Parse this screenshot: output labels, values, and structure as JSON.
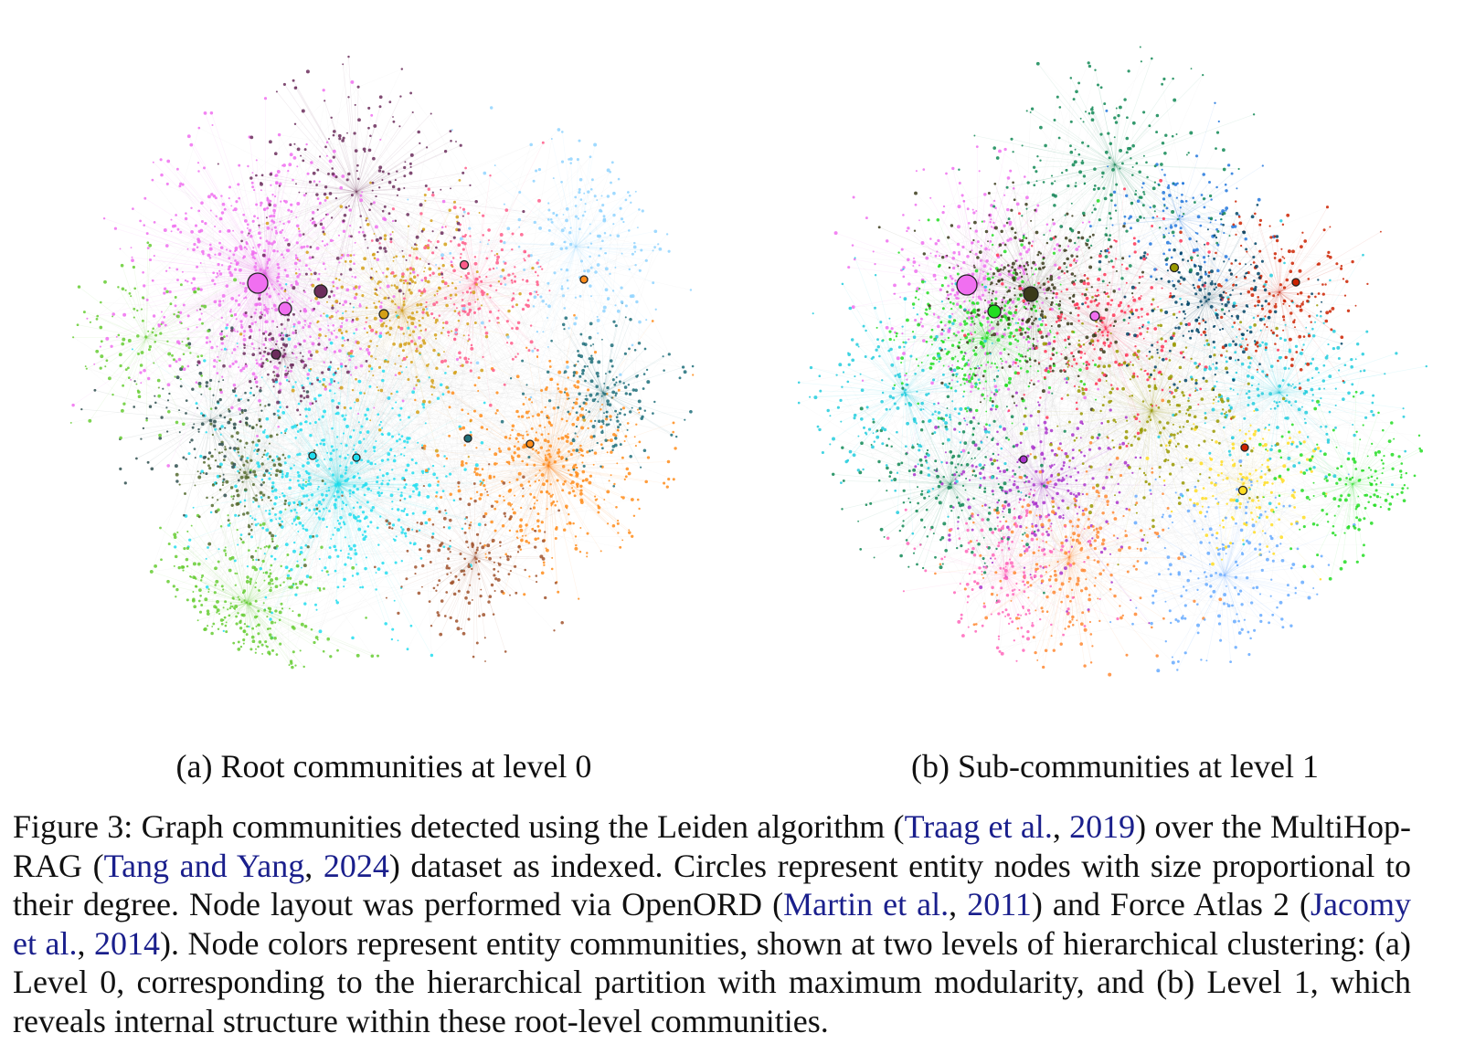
{
  "figure": {
    "subcaption_a": "(a) Root communities at level 0",
    "subcaption_b": "(b) Sub-communities at level 1",
    "caption": {
      "t1": "Figure 3:  Graph communities detected using the Leiden algorithm (",
      "c1_text": "Traag et al.",
      "c1_sep": ", ",
      "c1_year": "2019",
      "t2": ") over the MultiHop-RAG (",
      "c2_text": "Tang and Yang",
      "c2_sep": ", ",
      "c2_year": "2024",
      "t3": ") dataset as indexed. Circles represent entity nodes with size proportional to their degree.  Node layout was performed via OpenORD (",
      "c3_text": "Martin et al.",
      "c3_sep": ", ",
      "c3_year": "2011",
      "t4": ") and Force Atlas 2 (",
      "c4_text": "Jacomy et al.",
      "c4_sep": ", ",
      "c4_year": "2014",
      "t5": "). Node colors represent entity communities, shown at two levels of hierarchical clustering: (a) Level 0, corresponding to the hierarchical partition with maximum modularity, and (b) Level 1, which reveals internal structure within these root-level communities."
    }
  },
  "colors": {
    "citation": "#1a1f8c",
    "level0_palette": [
      "#f06ff0",
      "#22ddee",
      "#ff8c1a",
      "#66cc33",
      "#d4a017",
      "#6b2d5c",
      "#1f6f7a",
      "#556b2f",
      "#ff5c8a",
      "#8fd3ff",
      "#2f4f4f",
      "#a0522d"
    ],
    "level1_palette": [
      "#f06ff0",
      "#22dd22",
      "#3a3a1a",
      "#ff3355",
      "#2277dd",
      "#ffdd22",
      "#22ccdd",
      "#aa33cc",
      "#ff8833",
      "#118855",
      "#cc2200",
      "#66aaff",
      "#999900",
      "#ff66bb",
      "#004466"
    ]
  }
}
